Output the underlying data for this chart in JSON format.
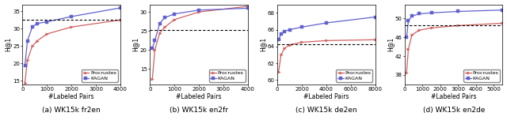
{
  "subplots": [
    {
      "title": "(a) WK15k fr2en",
      "xlabel": "#Labeled Pairs",
      "ylabel": "H@1",
      "xlim": [
        0,
        4000
      ],
      "ylim": [
        14,
        37
      ],
      "yticks": [
        15,
        20,
        25,
        30,
        35
      ],
      "xticks": [
        0,
        1000,
        2000,
        3000,
        4000
      ],
      "procrustes_x": [
        100,
        200,
        400,
        600,
        1000,
        2000,
        4000
      ],
      "procrustes_y": [
        14.5,
        21.0,
        25.0,
        26.5,
        28.5,
        30.5,
        32.5
      ],
      "kagan_x": [
        100,
        200,
        400,
        600,
        1000,
        2000,
        4000
      ],
      "kagan_y": [
        19.5,
        26.5,
        30.5,
        31.5,
        32.0,
        33.5,
        36.0
      ],
      "hline": 32.5,
      "legend_loc": "lower right"
    },
    {
      "title": "(b) WK15k en2fr",
      "xlabel": "#Labeled Pairs",
      "ylabel": "H@1",
      "xlim": [
        0,
        4000
      ],
      "ylim": [
        11,
        32
      ],
      "yticks": [
        15,
        20,
        25,
        30
      ],
      "xticks": [
        0,
        1000,
        2000,
        3000,
        4000
      ],
      "procrustes_x": [
        100,
        200,
        400,
        600,
        1000,
        2000,
        4000
      ],
      "procrustes_y": [
        12.5,
        20.0,
        24.5,
        26.0,
        28.0,
        30.0,
        31.5
      ],
      "kagan_x": [
        100,
        200,
        400,
        600,
        1000,
        2000,
        4000
      ],
      "kagan_y": [
        20.5,
        22.5,
        27.0,
        28.5,
        29.5,
        30.5,
        31.0
      ],
      "hline": 25.2,
      "legend_loc": "lower right"
    },
    {
      "title": "(c) WK15k de2en",
      "xlabel": "#Labeled Pairs",
      "ylabel": "H@1",
      "xlim": [
        0,
        8000
      ],
      "ylim": [
        59.5,
        69
      ],
      "yticks": [
        60,
        62,
        64,
        66,
        68
      ],
      "xticks": [
        0,
        2000,
        4000,
        6000,
        8000
      ],
      "procrustes_x": [
        100,
        300,
        600,
        1000,
        2000,
        4000,
        8000
      ],
      "procrustes_y": [
        61.0,
        63.0,
        63.8,
        64.2,
        64.5,
        64.7,
        64.8
      ],
      "kagan_x": [
        100,
        300,
        600,
        1000,
        2000,
        4000,
        8000
      ],
      "kagan_y": [
        64.8,
        65.5,
        65.8,
        66.0,
        66.3,
        66.8,
        67.5
      ],
      "hline": 64.3,
      "legend_loc": "lower right"
    },
    {
      "title": "(d) WK15k en2de",
      "xlabel": "#Labeled Pairs",
      "ylabel": "H@1",
      "xlim": [
        0,
        5500
      ],
      "ylim": [
        36,
        53
      ],
      "yticks": [
        38,
        42,
        46,
        50
      ],
      "xticks": [
        0,
        1000,
        2000,
        3000,
        4000,
        5000
      ],
      "procrustes_x": [
        100,
        200,
        400,
        800,
        1500,
        3000,
        5500
      ],
      "procrustes_y": [
        38.5,
        43.5,
        46.5,
        47.5,
        48.0,
        48.5,
        49.0
      ],
      "kagan_x": [
        100,
        200,
        400,
        800,
        1500,
        3000,
        5500
      ],
      "kagan_y": [
        46.0,
        49.5,
        50.5,
        51.0,
        51.2,
        51.5,
        51.8
      ],
      "hline": 48.5,
      "legend_loc": "lower right"
    }
  ],
  "procrustes_color": "#d06060",
  "kagan_color": "#6060d0",
  "hline_color": "black",
  "marker_size": 2.5,
  "line_width": 0.9,
  "title_fontsize": 6.5,
  "tick_fontsize": 5,
  "label_fontsize": 5.5,
  "legend_fontsize": 4.5
}
